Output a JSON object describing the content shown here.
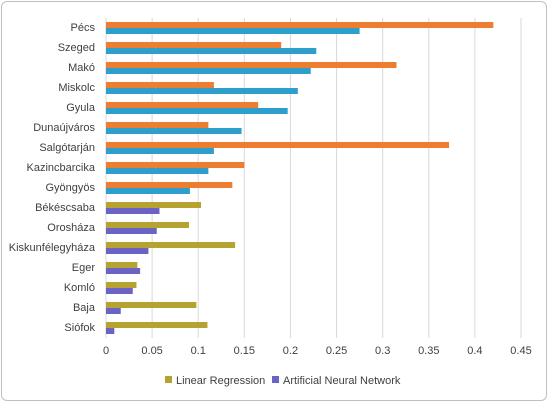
{
  "chart_data": {
    "type": "bar",
    "orientation": "horizontal",
    "categories": [
      "Pécs",
      "Szeged",
      "Makó",
      "Miskolc",
      "Gyula",
      "Dunaújváros",
      "Salgótarján",
      "Kazincbarcika",
      "Gyöngyös",
      "Békéscsaba",
      "Orosháza",
      "Kiskunfélegyháza",
      "Eger",
      "Komló",
      "Baja",
      "Siófok"
    ],
    "series": [
      {
        "name": "Linear Regression",
        "color": "#ED7D31",
        "alt_color": "#B5A230",
        "values": [
          0.42,
          0.19,
          0.315,
          0.117,
          0.165,
          0.111,
          0.372,
          0.15,
          0.137,
          0.103,
          0.09,
          0.14,
          0.034,
          0.033,
          0.098,
          0.11
        ]
      },
      {
        "name": "Artificial Neural Network",
        "color": "#2E9FCC",
        "alt_color": "#6A62C4",
        "values": [
          0.275,
          0.228,
          0.222,
          0.208,
          0.197,
          0.147,
          0.117,
          0.111,
          0.091,
          0.058,
          0.055,
          0.046,
          0.037,
          0.029,
          0.016,
          0.009
        ]
      }
    ],
    "legend_series": [
      0,
      1
    ],
    "alt_color_from_index": 9,
    "xlim": [
      0,
      0.45
    ],
    "xticks": [
      "0",
      "0.05",
      "0.1",
      "0.15",
      "0.2",
      "0.25",
      "0.3",
      "0.35",
      "0.4",
      "0.45"
    ],
    "legend": {
      "position": "bottom",
      "entries": [
        "Linear Regression",
        "Artificial Neural Network"
      ],
      "colors": [
        "#B5A230",
        "#6A62C4"
      ]
    },
    "grid": true,
    "gridline_color": "#d9d9d9"
  }
}
